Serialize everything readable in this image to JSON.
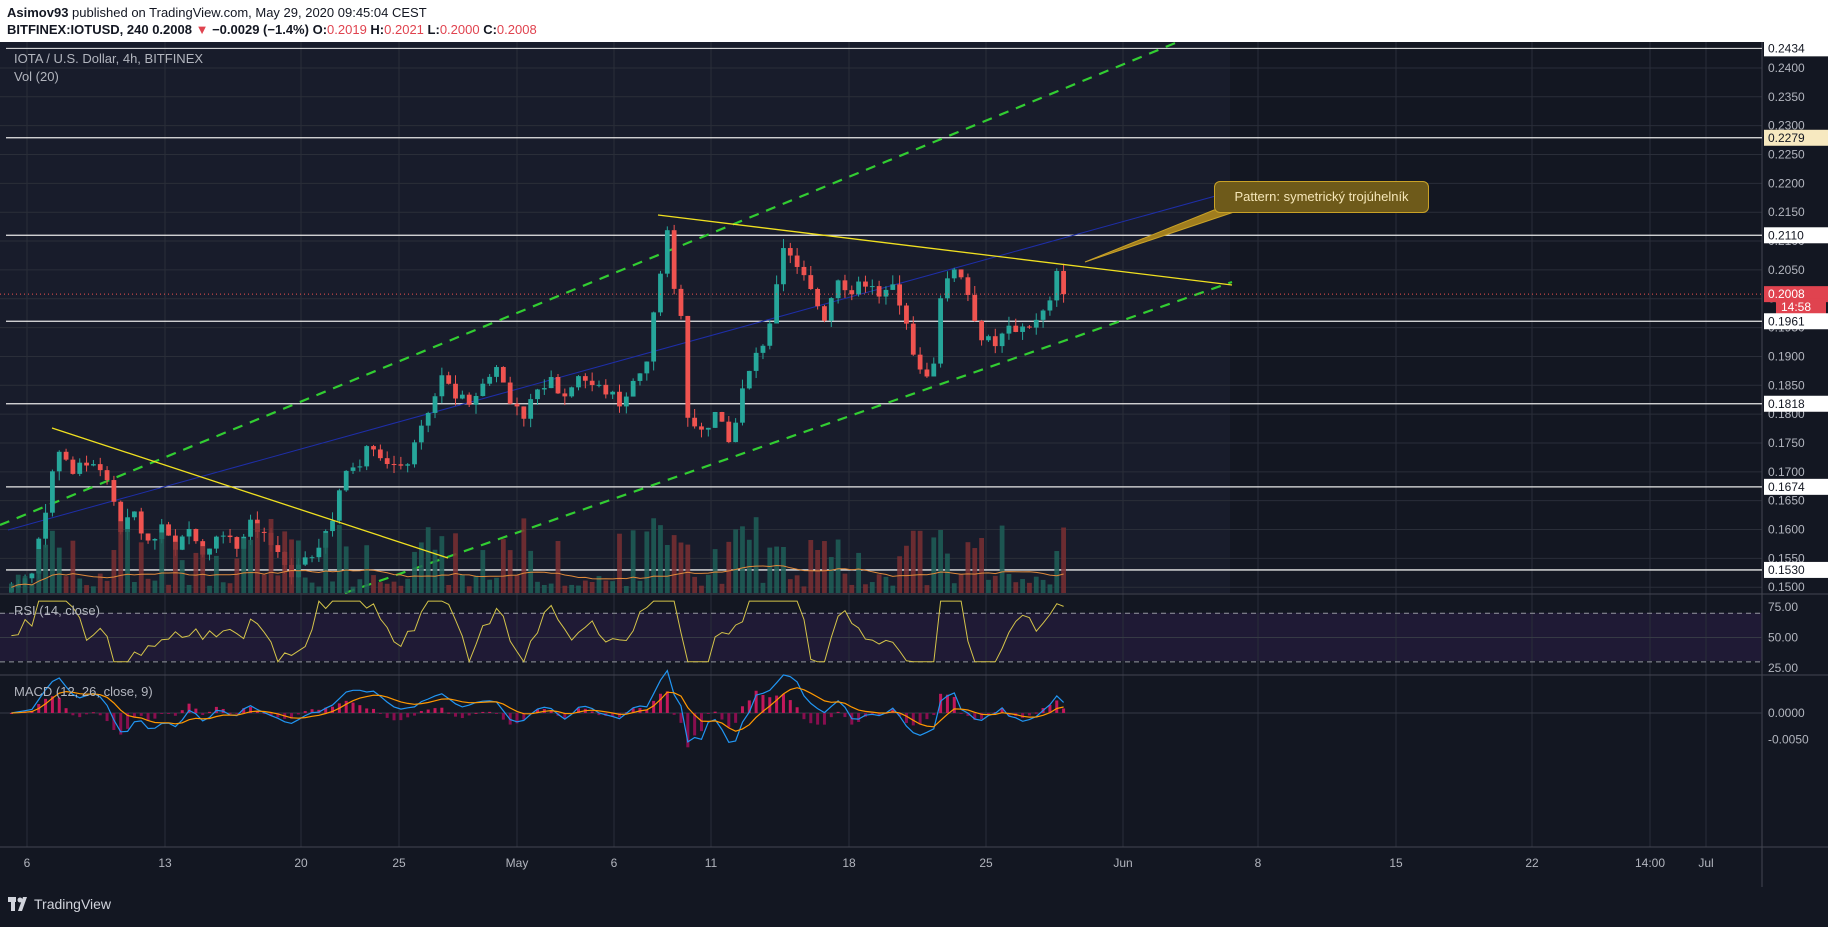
{
  "header": {
    "author": "Asimov93",
    "published": "published on TradingView.com, May 29, 2020 09:45:04 CEST",
    "symbol_line_prefix": "BITFINEX:IOTUSD, 240",
    "last": "0.2008",
    "change_arrow": "▼",
    "change": "−0.0029 (−1.4%)",
    "o_label": "O:",
    "o": "0.2019",
    "h_label": "H:",
    "h": "0.2021",
    "l_label": "L:",
    "l": "0.2000",
    "c_label": "C:",
    "c": "0.2008"
  },
  "legends": {
    "main": "IOTA / U.S. Dollar, 4h, BITFINEX",
    "vol": "Vol (20)",
    "rsi": "RSI (14, close)",
    "macd": "MACD (12, 26, close, 9)"
  },
  "annotation": {
    "pattern": "Pattern: symetrický trojúhelník"
  },
  "footer": {
    "brand": "TradingView"
  },
  "colors": {
    "background": "#131722",
    "grid": "#2a2e39",
    "up": "#26a69a",
    "down": "#ef5350",
    "channel": "#32cd32",
    "triangle": "#f0e020",
    "hline": "#e8e8e8",
    "rsi": "#d4c44a",
    "macd": "#2196f3",
    "signal": "#ff9800",
    "hist": "#e91e63"
  },
  "chart_data": [
    {
      "type": "candlestick",
      "title": "IOTA / U.S. Dollar, 4h, BITFINEX",
      "x_ticks": [
        "6",
        "13",
        "20",
        "25",
        "May",
        "6",
        "11",
        "18",
        "25",
        "Jun",
        "8",
        "15",
        "22",
        "14:00",
        "Jul"
      ],
      "y_ticks": [
        "0.2400",
        "0.2350",
        "0.2300",
        "0.2250",
        "0.2200",
        "0.2150",
        "0.2100",
        "0.2050",
        "0.2000",
        "0.1950",
        "0.1900",
        "0.1850",
        "0.1800",
        "0.1750",
        "0.1700",
        "0.1650",
        "0.1600",
        "0.1550",
        "0.1500"
      ],
      "ylim": [
        0.149,
        0.2445
      ],
      "price_labels": [
        {
          "text": "0.2434",
          "value": 0.2434,
          "style": "white"
        },
        {
          "text": "0.2279",
          "value": 0.2279,
          "style": "white"
        },
        {
          "text": "0.2110",
          "value": 0.211,
          "style": "white"
        },
        {
          "text": "0.2008",
          "value": 0.2008,
          "style": "red"
        },
        {
          "text": "14:58",
          "value": 0.1986,
          "style": "red"
        },
        {
          "text": "0.1961",
          "value": 0.1961,
          "style": "white"
        },
        {
          "text": "0.1818",
          "value": 0.1818,
          "style": "white"
        },
        {
          "text": "0.1674",
          "value": 0.1674,
          "style": "white"
        },
        {
          "text": "0.1530",
          "value": 0.153,
          "style": "white"
        }
      ],
      "horizontal_levels": [
        0.2279,
        0.211,
        0.1961,
        0.1818,
        0.1674,
        0.153
      ],
      "current_price": 0.2008,
      "close_path": [
        [
          0,
          0.15
        ],
        [
          3,
          0.152
        ],
        [
          5,
          0.164
        ],
        [
          7,
          0.174
        ],
        [
          9,
          0.17
        ],
        [
          12,
          0.172
        ],
        [
          14,
          0.169
        ],
        [
          16,
          0.159
        ],
        [
          18,
          0.163
        ],
        [
          20,
          0.157
        ],
        [
          22,
          0.16
        ],
        [
          24,
          0.156
        ],
        [
          26,
          0.16
        ],
        [
          28,
          0.156
        ],
        [
          30,
          0.159
        ],
        [
          33,
          0.157
        ],
        [
          35,
          0.162
        ],
        [
          37,
          0.159
        ],
        [
          39,
          0.156
        ],
        [
          41,
          0.152
        ],
        [
          43,
          0.154
        ],
        [
          45,
          0.158
        ],
        [
          47,
          0.162
        ],
        [
          49,
          0.17
        ],
        [
          51,
          0.172
        ],
        [
          53,
          0.175
        ],
        [
          55,
          0.172
        ],
        [
          57,
          0.17
        ],
        [
          59,
          0.174
        ],
        [
          61,
          0.18
        ],
        [
          63,
          0.187
        ],
        [
          65,
          0.183
        ],
        [
          67,
          0.182
        ],
        [
          69,
          0.185
        ],
        [
          71,
          0.188
        ],
        [
          73,
          0.183
        ],
        [
          75,
          0.18
        ],
        [
          77,
          0.184
        ],
        [
          79,
          0.186
        ],
        [
          81,
          0.183
        ],
        [
          83,
          0.187
        ],
        [
          85,
          0.185
        ],
        [
          87,
          0.184
        ],
        [
          89,
          0.182
        ],
        [
          91,
          0.186
        ],
        [
          93,
          0.189
        ],
        [
          95,
          0.205
        ],
        [
          96,
          0.211
        ],
        [
          97,
          0.201
        ],
        [
          98,
          0.198
        ],
        [
          99,
          0.18
        ],
        [
          101,
          0.177
        ],
        [
          103,
          0.18
        ],
        [
          105,
          0.175
        ],
        [
          107,
          0.184
        ],
        [
          109,
          0.19
        ],
        [
          111,
          0.195
        ],
        [
          113,
          0.208
        ],
        [
          115,
          0.206
        ],
        [
          117,
          0.201
        ],
        [
          119,
          0.197
        ],
        [
          121,
          0.204
        ],
        [
          123,
          0.201
        ],
        [
          125,
          0.203
        ],
        [
          127,
          0.2
        ],
        [
          129,
          0.202
        ],
        [
          131,
          0.195
        ],
        [
          133,
          0.187
        ],
        [
          135,
          0.188
        ],
        [
          136,
          0.201
        ],
        [
          138,
          0.206
        ],
        [
          140,
          0.201
        ],
        [
          142,
          0.193
        ],
        [
          144,
          0.192
        ],
        [
          146,
          0.195
        ],
        [
          148,
          0.195
        ],
        [
          150,
          0.196
        ],
        [
          152,
          0.199
        ],
        [
          153,
          0.204
        ],
        [
          154,
          0.2008
        ]
      ],
      "total_bars": 155,
      "volume_note": "Vol (20)"
    },
    {
      "type": "line",
      "title": "RSI (14, close)",
      "y_ticks": [
        "75.00",
        "50.00",
        "25.00"
      ],
      "ylim": [
        20,
        85
      ],
      "bands": [
        70,
        30
      ]
    },
    {
      "type": "line",
      "title": "MACD (12, 26, close, 9)",
      "y_ticks": [
        "0.0000",
        "-0.0050"
      ],
      "series": [
        "MACD",
        "Signal",
        "Histogram"
      ]
    }
  ]
}
